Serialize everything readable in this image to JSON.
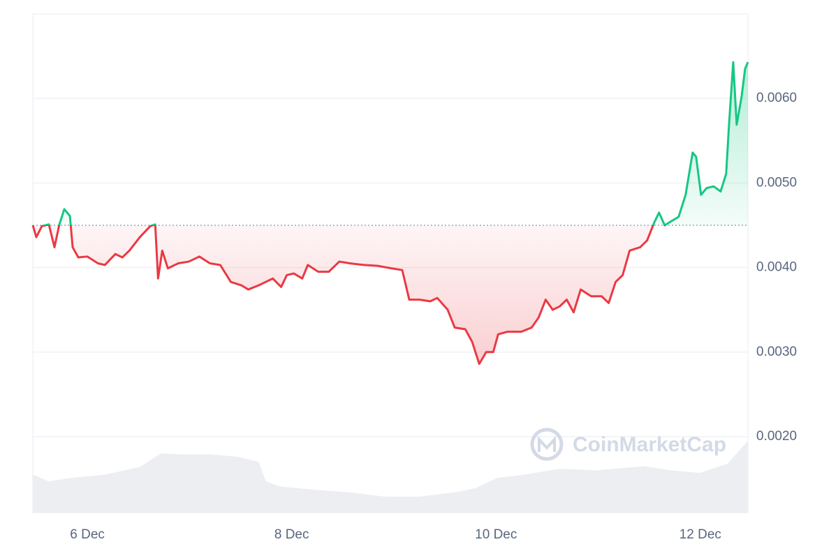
{
  "chart_data": {
    "type": "baseline_line",
    "x": [
      5.466,
      5.5,
      5.555,
      5.623,
      5.678,
      5.726,
      5.774,
      5.829,
      5.856,
      5.911,
      6.0,
      6.103,
      6.171,
      6.274,
      6.342,
      6.411,
      6.514,
      6.616,
      6.664,
      6.692,
      6.733,
      6.788,
      6.89,
      6.993,
      7.096,
      7.199,
      7.301,
      7.404,
      7.507,
      7.575,
      7.678,
      7.815,
      7.897,
      7.952,
      8.021,
      8.103,
      8.158,
      8.26,
      8.363,
      8.466,
      8.568,
      8.705,
      8.842,
      8.979,
      9.082,
      9.151,
      9.253,
      9.356,
      9.425,
      9.527,
      9.596,
      9.699,
      9.767,
      9.836,
      9.904,
      9.973,
      10.021,
      10.11,
      10.247,
      10.349,
      10.418,
      10.486,
      10.555,
      10.623,
      10.692,
      10.76,
      10.829,
      10.932,
      11.034,
      11.103,
      11.171,
      11.24,
      11.308,
      11.411,
      11.479,
      11.548,
      11.596,
      11.651,
      11.719,
      11.788,
      11.856,
      11.925,
      11.959,
      12.007,
      12.062,
      12.13,
      12.199,
      12.253,
      12.281,
      12.322,
      12.356,
      12.404,
      12.438,
      12.466
    ],
    "values": [
      0.0045,
      0.00436,
      0.00449,
      0.00451,
      0.00424,
      0.00451,
      0.00469,
      0.00461,
      0.00424,
      0.00412,
      0.00413,
      0.00405,
      0.00403,
      0.00416,
      0.00412,
      0.0042,
      0.00436,
      0.00449,
      0.00451,
      0.00387,
      0.0042,
      0.00399,
      0.00405,
      0.00407,
      0.00413,
      0.00405,
      0.00403,
      0.00383,
      0.00379,
      0.00374,
      0.00379,
      0.00387,
      0.00377,
      0.00391,
      0.00393,
      0.00387,
      0.00403,
      0.00395,
      0.00395,
      0.00407,
      0.00405,
      0.00403,
      0.00402,
      0.00399,
      0.00397,
      0.00362,
      0.00362,
      0.0036,
      0.00364,
      0.0035,
      0.00329,
      0.00327,
      0.00312,
      0.00286,
      0.003,
      0.003,
      0.00321,
      0.00324,
      0.00324,
      0.00329,
      0.00341,
      0.00362,
      0.0035,
      0.00354,
      0.00362,
      0.00347,
      0.00374,
      0.00366,
      0.00366,
      0.00358,
      0.00383,
      0.00391,
      0.0042,
      0.00424,
      0.00432,
      0.00453,
      0.00465,
      0.0045,
      0.00455,
      0.0046,
      0.00486,
      0.00536,
      0.00531,
      0.00486,
      0.00494,
      0.00496,
      0.0049,
      0.00511,
      0.00569,
      0.00643,
      0.00569,
      0.00602,
      0.00635,
      0.00643
    ],
    "baseline": 0.0045,
    "up_color": "#16c784",
    "down_color": "#ea3943",
    "volume": {
      "color": "#eceef1",
      "x": [
        5.466,
        5.623,
        5.829,
        6.171,
        6.514,
        6.719,
        6.925,
        7.199,
        7.473,
        7.678,
        7.747,
        7.884,
        8.226,
        8.568,
        8.911,
        9.253,
        9.596,
        9.801,
        10.007,
        10.281,
        10.623,
        10.966,
        11.171,
        11.445,
        11.719,
        11.993,
        12.267,
        12.466
      ],
      "values": [
        0.00155,
        0.00147,
        0.00151,
        0.00155,
        0.00164,
        0.0018,
        0.00179,
        0.00179,
        0.00176,
        0.0017,
        0.00147,
        0.00141,
        0.00137,
        0.00134,
        0.00129,
        0.00129,
        0.00134,
        0.00139,
        0.00151,
        0.00155,
        0.00162,
        0.0016,
        0.00162,
        0.00165,
        0.0016,
        0.00157,
        0.00168,
        0.00195
      ]
    },
    "xlim": [
      5.466,
      12.466
    ],
    "ylim": [
      0.0011,
      0.007
    ],
    "xticks": [
      {
        "value": 6,
        "label": "6 Dec"
      },
      {
        "value": 8,
        "label": "8 Dec"
      },
      {
        "value": 10,
        "label": "10 Dec"
      },
      {
        "value": 12,
        "label": "12 Dec"
      }
    ],
    "yticks": [
      {
        "value": 0.002,
        "label": "0.0020"
      },
      {
        "value": 0.003,
        "label": "0.0030"
      },
      {
        "value": 0.004,
        "label": "0.0040"
      },
      {
        "value": 0.005,
        "label": "0.0050"
      },
      {
        "value": 0.006,
        "label": "0.0060"
      }
    ],
    "grid": true,
    "watermark": "CoinMarketCap"
  }
}
